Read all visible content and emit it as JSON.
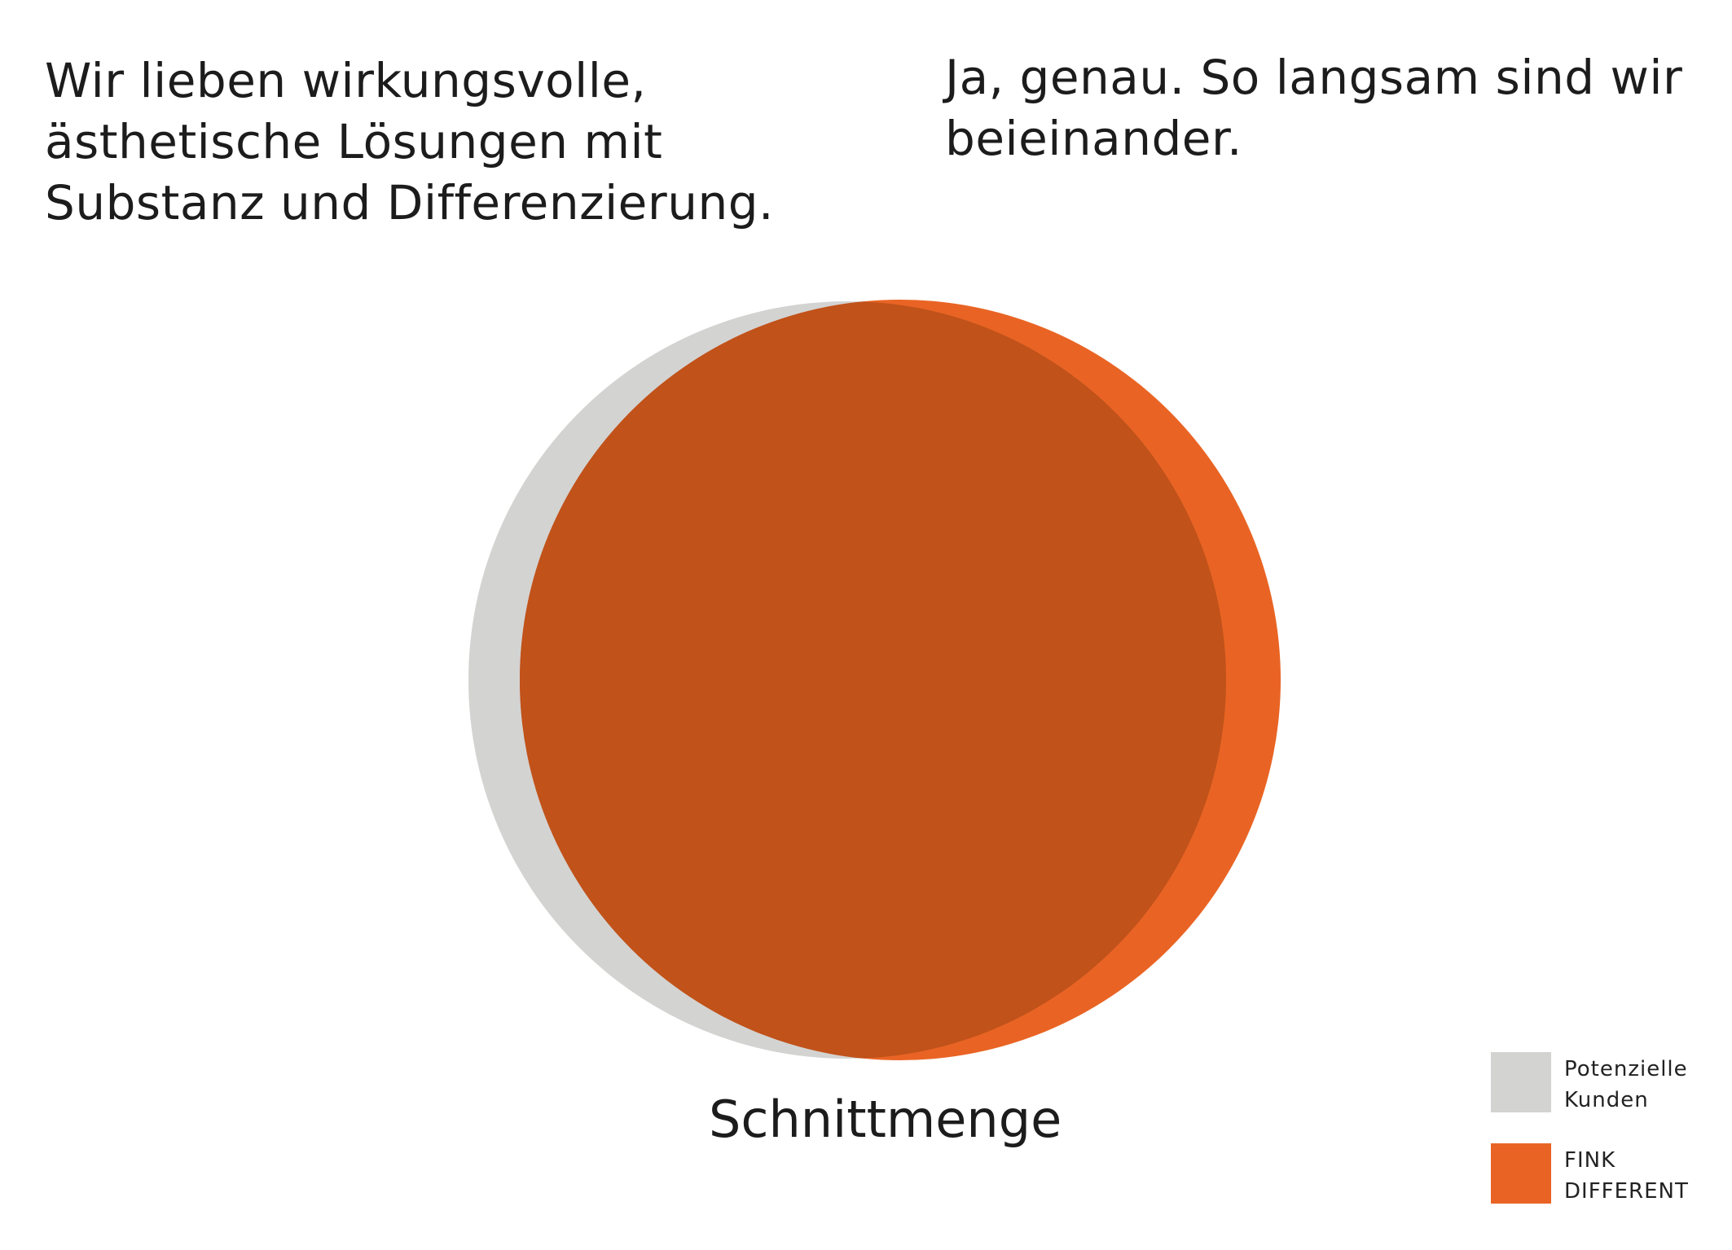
{
  "quotes": {
    "left": {
      "lines": [
        "Wir lieben wirkungsvolle,",
        "ästhetische Lösungen mit",
        "Substanz und Differenzierung."
      ]
    },
    "right": {
      "lines": [
        "Ja, genau. So langsam sind wir",
        "beieinander."
      ]
    }
  },
  "diagram": {
    "caption": "Schnittmenge",
    "colors": {
      "potential_customers": "#d3d3d2",
      "fink_different": "#e96424",
      "intersection": "#c0521a"
    }
  },
  "legend": {
    "items": [
      {
        "lines": [
          "Potenzielle",
          "Kunden"
        ],
        "color": "#d3d3d2"
      },
      {
        "lines": [
          "FINK",
          "DIFFERENT"
        ],
        "color": "#e96424"
      }
    ]
  }
}
